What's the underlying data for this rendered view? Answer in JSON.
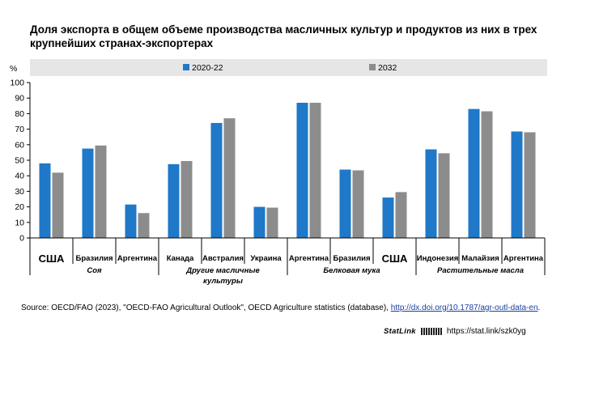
{
  "title": "Доля экспорта в общем объеме производства масличных культур и продуктов из них в трех крупнейших странах-экспортерах",
  "source": {
    "prefix": "Source: OECD/FAO (2023), \"OECD-FAO Agricultural Outlook\", OECD Agriculture statistics (database), ",
    "link": "http://dx.doi.org/10.1787/agr-outl-data-en",
    "suffix": "."
  },
  "statlink": {
    "brand": "StatLink",
    "url": "https://stat.link/szk0yg"
  },
  "colors": {
    "series_2020": "#1f78c8",
    "series_2032": "#8c8c8c",
    "legend_bg": "#e6e6e6"
  },
  "chart_data": {
    "type": "bar",
    "ylabel": "%",
    "ylim": [
      0,
      100
    ],
    "yticks": [
      0,
      10,
      20,
      30,
      40,
      50,
      60,
      70,
      80,
      90,
      100
    ],
    "grid": false,
    "legend_position": "top",
    "series": [
      {
        "name": "2020-22",
        "values": [
          48,
          57.5,
          21.5,
          47.5,
          74,
          20,
          87,
          44,
          26,
          57,
          83,
          68.5
        ]
      },
      {
        "name": "2032",
        "values": [
          42,
          59.5,
          16,
          49.5,
          77,
          19.5,
          87,
          43.5,
          29.5,
          54.5,
          81.5,
          68
        ]
      }
    ],
    "categories": [
      "США",
      "Бразилия",
      "Аргентина",
      "Канада",
      "Австралия",
      "Украина",
      "Аргентина",
      "Бразилия",
      "США",
      "Индонезия",
      "Малайзия",
      "Аргентина"
    ],
    "category_emphasis": [
      true,
      false,
      false,
      false,
      false,
      false,
      false,
      false,
      true,
      false,
      false,
      false
    ],
    "groups": [
      {
        "label": "Соя",
        "label_line2": "",
        "start": 0,
        "count": 3
      },
      {
        "label": "Другие масличные",
        "label_line2": "культуры",
        "start": 3,
        "count": 3
      },
      {
        "label": "Белковая мука",
        "label_line2": "",
        "start": 6,
        "count": 3
      },
      {
        "label": "Растительные масла",
        "label_line2": "",
        "start": 9,
        "count": 3
      }
    ]
  }
}
